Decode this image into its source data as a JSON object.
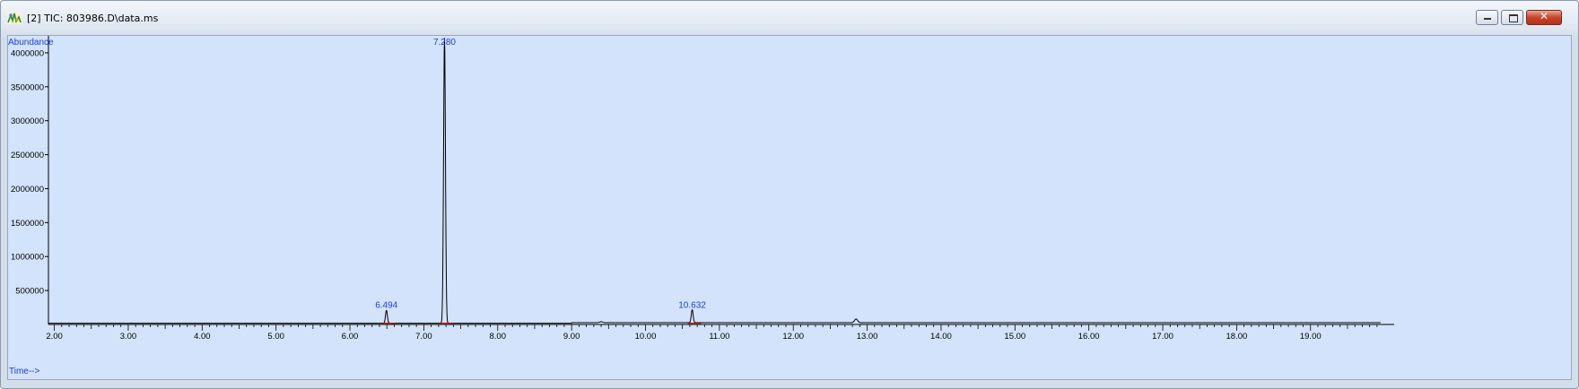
{
  "window": {
    "title": "[2] TIC: 803986.D\\data.ms",
    "controls": {
      "minimize": "minimize-icon",
      "maximize": "maximize-icon",
      "close": "close-icon"
    }
  },
  "chart_data": {
    "type": "line",
    "ylabel": "Abundance",
    "xlabel": "Time-->",
    "xlim": [
      1.92,
      19.95
    ],
    "ylim": [
      0,
      4250000
    ],
    "x_ticks": [
      2.0,
      3.0,
      4.0,
      5.0,
      6.0,
      7.0,
      8.0,
      9.0,
      10.0,
      11.0,
      12.0,
      13.0,
      14.0,
      15.0,
      16.0,
      17.0,
      18.0,
      19.0
    ],
    "x_tick_labels": [
      "2.00",
      "3.00",
      "4.00",
      "5.00",
      "6.00",
      "7.00",
      "8.00",
      "9.00",
      "10.00",
      "11.00",
      "12.00",
      "13.00",
      "14.00",
      "15.00",
      "16.00",
      "17.00",
      "18.00",
      "19.00"
    ],
    "y_ticks": [
      500000,
      1000000,
      1500000,
      2000000,
      2500000,
      3000000,
      3500000,
      4000000
    ],
    "y_tick_labels": [
      "500000",
      "1000000",
      "1500000",
      "2000000",
      "2500000",
      "3000000",
      "3500000",
      "4000000"
    ],
    "peaks": [
      {
        "rt": 6.494,
        "label": "6.494",
        "height": 190000
      },
      {
        "rt": 7.28,
        "label": "7.280",
        "height": 4200000
      },
      {
        "rt": 10.632,
        "label": "10.632",
        "height": 190000
      }
    ],
    "minor_peaks": [
      {
        "rt": 9.4,
        "height": 15000
      },
      {
        "rt": 12.85,
        "height": 55000
      }
    ],
    "baseline": 18000,
    "line_color": "#000000",
    "label_color": "#1f3fd0",
    "integration_color": "#cc0000",
    "background": "#d2e3fb"
  }
}
